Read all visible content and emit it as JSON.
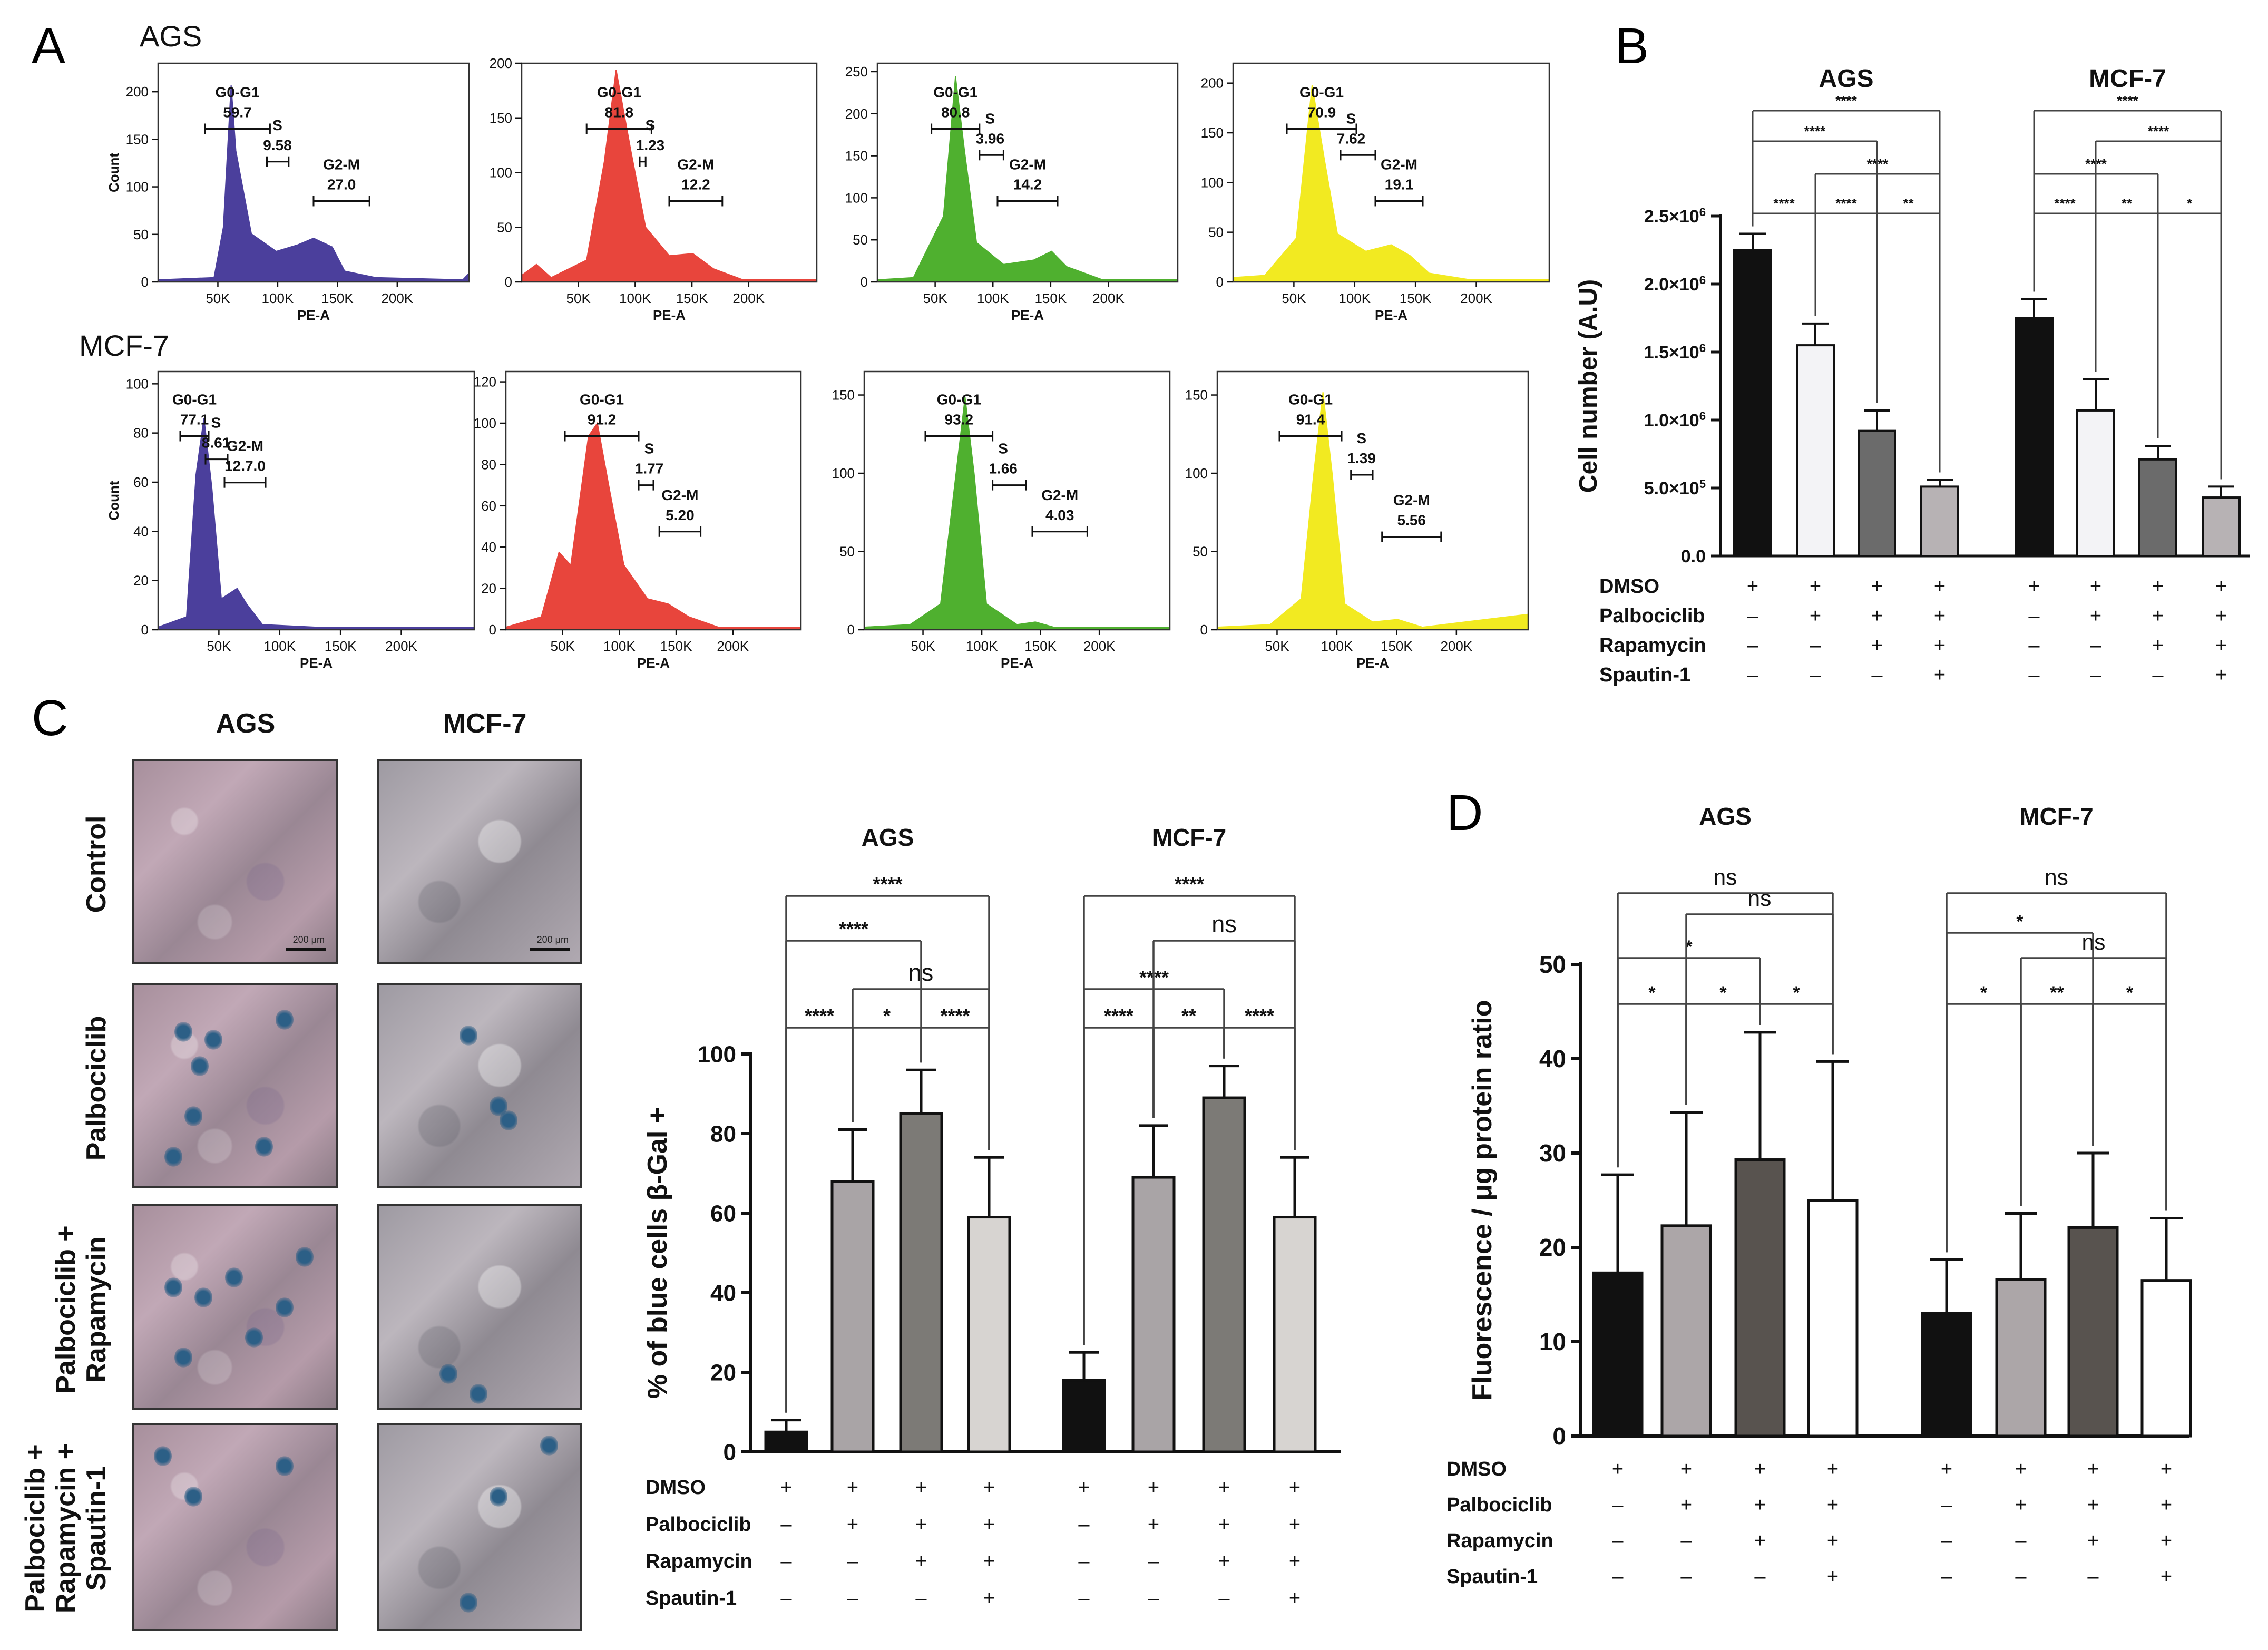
{
  "panel_letters": {
    "a": "A",
    "b": "B",
    "c": "C",
    "d": "D"
  },
  "histogram_fill_colors": [
    "#4b3f9c",
    "#e8453c",
    "#4fb02f",
    "#f2ea21"
  ],
  "chart_data": [
    {
      "type": "histogram",
      "panel": "A",
      "rows": [
        {
          "cell_line": "AGS",
          "xlabel": "PE-A",
          "ylabel": "Count",
          "x_ticks": [
            "50K",
            "100K",
            "150K",
            "200K"
          ],
          "plots": [
            {
              "y_ticks": [
                "0",
                "50",
                "100",
                "150",
                "200"
              ],
              "ymax": 230,
              "gates": [
                {
                  "label": "G0-G1",
                  "value": "59.7"
                },
                {
                  "label": "S",
                  "value": "9.58"
                },
                {
                  "label": "G2-M",
                  "value": "27.0"
                }
              ]
            },
            {
              "y_ticks": [
                "0",
                "50",
                "100",
                "150",
                "200"
              ],
              "ymax": 200,
              "gates": [
                {
                  "label": "G0-G1",
                  "value": "81.8"
                },
                {
                  "label": "S",
                  "value": "1.23"
                },
                {
                  "label": "G2-M",
                  "value": "12.2"
                }
              ]
            },
            {
              "y_ticks": [
                "0",
                "50",
                "100",
                "150",
                "200",
                "250"
              ],
              "ymax": 260,
              "gates": [
                {
                  "label": "G0-G1",
                  "value": "80.8"
                },
                {
                  "label": "S",
                  "value": "3.96"
                },
                {
                  "label": "G2-M",
                  "value": "14.2"
                }
              ]
            },
            {
              "y_ticks": [
                "0",
                "50",
                "100",
                "150",
                "200"
              ],
              "ymax": 220,
              "gates": [
                {
                  "label": "G0-G1",
                  "value": "70.9"
                },
                {
                  "label": "S",
                  "value": "7.62"
                },
                {
                  "label": "G2-M",
                  "value": "19.1"
                }
              ]
            }
          ]
        },
        {
          "cell_line": "MCF-7",
          "xlabel": "PE-A",
          "ylabel": "Count",
          "x_ticks": [
            "50K",
            "100K",
            "150K",
            "200K"
          ],
          "plots": [
            {
              "y_ticks": [
                "0",
                "20",
                "40",
                "60",
                "80",
                "100"
              ],
              "ymax": 105,
              "gates": [
                {
                  "label": "G0-G1",
                  "value": "77.1"
                },
                {
                  "label": "S",
                  "value": "8.61"
                },
                {
                  "label": "G2-M",
                  "value": "12.7.0"
                }
              ]
            },
            {
              "y_ticks": [
                "0",
                "20",
                "40",
                "60",
                "80",
                "100",
                "120"
              ],
              "ymax": 125,
              "gates": [
                {
                  "label": "G0-G1",
                  "value": "91.2"
                },
                {
                  "label": "S",
                  "value": "1.77"
                },
                {
                  "label": "G2-M",
                  "value": "5.20"
                }
              ]
            },
            {
              "y_ticks": [
                "0",
                "50",
                "100",
                "150"
              ],
              "ymax": 165,
              "gates": [
                {
                  "label": "G0-G1",
                  "value": "93.2"
                },
                {
                  "label": "S",
                  "value": "1.66"
                },
                {
                  "label": "G2-M",
                  "value": "4.03"
                }
              ]
            },
            {
              "y_ticks": [
                "0",
                "50",
                "100",
                "150"
              ],
              "ymax": 165,
              "gates": [
                {
                  "label": "G0-G1",
                  "value": "91.4"
                },
                {
                  "label": "S",
                  "value": "1.39"
                },
                {
                  "label": "G2-M",
                  "value": "5.56"
                }
              ]
            }
          ]
        }
      ]
    },
    {
      "type": "bar",
      "panel": "B",
      "ylabel": "Cell number (A.U)",
      "ylim": [
        0,
        2500000
      ],
      "y_ticks": [
        {
          "value": 0,
          "base": "0.0",
          "exp": ""
        },
        {
          "value": 500000,
          "base": "5.0×10",
          "exp": "5"
        },
        {
          "value": 1000000,
          "base": "1.0×10",
          "exp": "6"
        },
        {
          "value": 1500000,
          "base": "1.5×10",
          "exp": "6"
        },
        {
          "value": 2000000,
          "base": "2.0×10",
          "exp": "6"
        },
        {
          "value": 2500000,
          "base": "2.5×10",
          "exp": "6"
        }
      ],
      "bar_colors": [
        "#111111",
        "#f3f3f6",
        "#6b6b6b",
        "#b7b2b4"
      ],
      "groups": [
        {
          "name": "AGS",
          "values": [
            2250000,
            1550000,
            920000,
            510000
          ],
          "errors": [
            120000,
            160000,
            150000,
            50000
          ],
          "comparisons": [
            {
              "from": 0,
              "to": 1,
              "label": "****"
            },
            {
              "from": 1,
              "to": 2,
              "label": "****"
            },
            {
              "from": 2,
              "to": 3,
              "label": "**"
            },
            {
              "from": 1,
              "to": 3,
              "label": "****"
            },
            {
              "from": 0,
              "to": 2,
              "label": "****"
            },
            {
              "from": 0,
              "to": 3,
              "label": "****"
            }
          ]
        },
        {
          "name": "MCF-7",
          "values": [
            1750000,
            1070000,
            710000,
            430000
          ],
          "errors": [
            140000,
            230000,
            100000,
            80000
          ],
          "comparisons": [
            {
              "from": 0,
              "to": 1,
              "label": "****"
            },
            {
              "from": 1,
              "to": 2,
              "label": "**"
            },
            {
              "from": 2,
              "to": 3,
              "label": "*"
            },
            {
              "from": 0,
              "to": 2,
              "label": "****"
            },
            {
              "from": 1,
              "to": 3,
              "label": "****"
            },
            {
              "from": 0,
              "to": 3,
              "label": "****"
            }
          ]
        }
      ],
      "treatment_table": [
        {
          "name": "DMSO",
          "marks": [
            "+",
            "+",
            "+",
            "+"
          ]
        },
        {
          "name": "Palbociclib",
          "marks": [
            "–",
            "+",
            "+",
            "+"
          ]
        },
        {
          "name": "Rapamycin",
          "marks": [
            "–",
            "–",
            "+",
            "+"
          ]
        },
        {
          "name": "Spautin-1",
          "marks": [
            "–",
            "–",
            "–",
            "+"
          ]
        }
      ]
    },
    {
      "type": "bar",
      "panel": "C",
      "ylabel": "% of blue cells β-Gal +",
      "ylim": [
        0,
        100
      ],
      "y_ticks": [
        {
          "value": 0,
          "label": "0"
        },
        {
          "value": 20,
          "label": "20"
        },
        {
          "value": 40,
          "label": "40"
        },
        {
          "value": 60,
          "label": "60"
        },
        {
          "value": 80,
          "label": "80"
        },
        {
          "value": 100,
          "label": "100"
        }
      ],
      "bar_colors": [
        "#111111",
        "#a9a4a6",
        "#7c7a76",
        "#d7d4d1"
      ],
      "groups": [
        {
          "name": "AGS",
          "values": [
            5,
            68,
            85,
            59
          ],
          "errors": [
            3,
            13,
            11,
            15
          ],
          "comparisons": [
            {
              "from": 0,
              "to": 1,
              "label": "****"
            },
            {
              "from": 1,
              "to": 2,
              "label": "*"
            },
            {
              "from": 2,
              "to": 3,
              "label": "****"
            },
            {
              "from": 1,
              "to": 3,
              "label": "ns"
            },
            {
              "from": 0,
              "to": 2,
              "label": "****"
            },
            {
              "from": 0,
              "to": 3,
              "label": "****"
            }
          ]
        },
        {
          "name": "MCF-7",
          "values": [
            18,
            69,
            89,
            59
          ],
          "errors": [
            7,
            13,
            8,
            15
          ],
          "comparisons": [
            {
              "from": 0,
              "to": 1,
              "label": "****"
            },
            {
              "from": 1,
              "to": 2,
              "label": "**"
            },
            {
              "from": 2,
              "to": 3,
              "label": "****"
            },
            {
              "from": 0,
              "to": 2,
              "label": "****"
            },
            {
              "from": 1,
              "to": 3,
              "label": "ns"
            },
            {
              "from": 0,
              "to": 3,
              "label": "****"
            }
          ]
        }
      ],
      "treatment_table": [
        {
          "name": "DMSO",
          "marks": [
            "+",
            "+",
            "+",
            "+"
          ]
        },
        {
          "name": "Palbociclib",
          "marks": [
            "–",
            "+",
            "+",
            "+"
          ]
        },
        {
          "name": "Rapamycin",
          "marks": [
            "–",
            "–",
            "+",
            "+"
          ]
        },
        {
          "name": "Spautin-1",
          "marks": [
            "–",
            "–",
            "–",
            "+"
          ]
        }
      ]
    },
    {
      "type": "bar",
      "panel": "D",
      "ylabel": "Fluorescence / μg protein ratio",
      "ylim": [
        0,
        50
      ],
      "y_ticks": [
        {
          "value": 0,
          "label": "0"
        },
        {
          "value": 10,
          "label": "10"
        },
        {
          "value": 20,
          "label": "20"
        },
        {
          "value": 30,
          "label": "30"
        },
        {
          "value": 40,
          "label": "40"
        },
        {
          "value": 50,
          "label": "50"
        }
      ],
      "bar_colors": [
        "#111111",
        "#aca6a8",
        "#58534f",
        "#ffffff"
      ],
      "groups": [
        {
          "name": "AGS",
          "values": [
            17.3,
            22.3,
            29.3,
            25.0
          ],
          "errors": [
            10.4,
            12.0,
            13.5,
            14.7
          ],
          "comparisons": [
            {
              "from": 0,
              "to": 1,
              "label": "*"
            },
            {
              "from": 1,
              "to": 2,
              "label": "*"
            },
            {
              "from": 2,
              "to": 3,
              "label": "*"
            },
            {
              "from": 0,
              "to": 2,
              "label": "*"
            },
            {
              "from": 1,
              "to": 3,
              "label": "ns"
            },
            {
              "from": 0,
              "to": 3,
              "label": "ns"
            }
          ]
        },
        {
          "name": "MCF-7",
          "values": [
            13.0,
            16.6,
            22.1,
            16.5
          ],
          "errors": [
            5.7,
            7.0,
            7.9,
            6.6
          ],
          "comparisons": [
            {
              "from": 0,
              "to": 1,
              "label": "*"
            },
            {
              "from": 1,
              "to": 2,
              "label": "**"
            },
            {
              "from": 2,
              "to": 3,
              "label": "*"
            },
            {
              "from": 1,
              "to": 3,
              "label": "ns"
            },
            {
              "from": 0,
              "to": 2,
              "label": "*"
            },
            {
              "from": 0,
              "to": 3,
              "label": "ns"
            }
          ]
        }
      ],
      "treatment_table": [
        {
          "name": "DMSO",
          "marks": [
            "+",
            "+",
            "+",
            "+"
          ]
        },
        {
          "name": "Palbociclib",
          "marks": [
            "–",
            "+",
            "+",
            "+"
          ]
        },
        {
          "name": "Rapamycin",
          "marks": [
            "–",
            "–",
            "+",
            "+"
          ]
        },
        {
          "name": "Spautin-1",
          "marks": [
            "–",
            "–",
            "–",
            "+"
          ]
        }
      ]
    }
  ],
  "micrographs": {
    "columns": [
      "AGS",
      "MCF-7"
    ],
    "rows": [
      "Control",
      "Palbociclib",
      "Palbociclib + Rapamycin",
      "Palbociclib + Rapamycin + Spautin-1"
    ],
    "row_lines": [
      [
        "Control"
      ],
      [
        "Palbociclib"
      ],
      [
        "Palbociclib +",
        "Rapamycin"
      ],
      [
        "Palbociclib +",
        "Rapamycin +",
        "Spautin-1"
      ]
    ],
    "scale_label": "200 μm"
  }
}
